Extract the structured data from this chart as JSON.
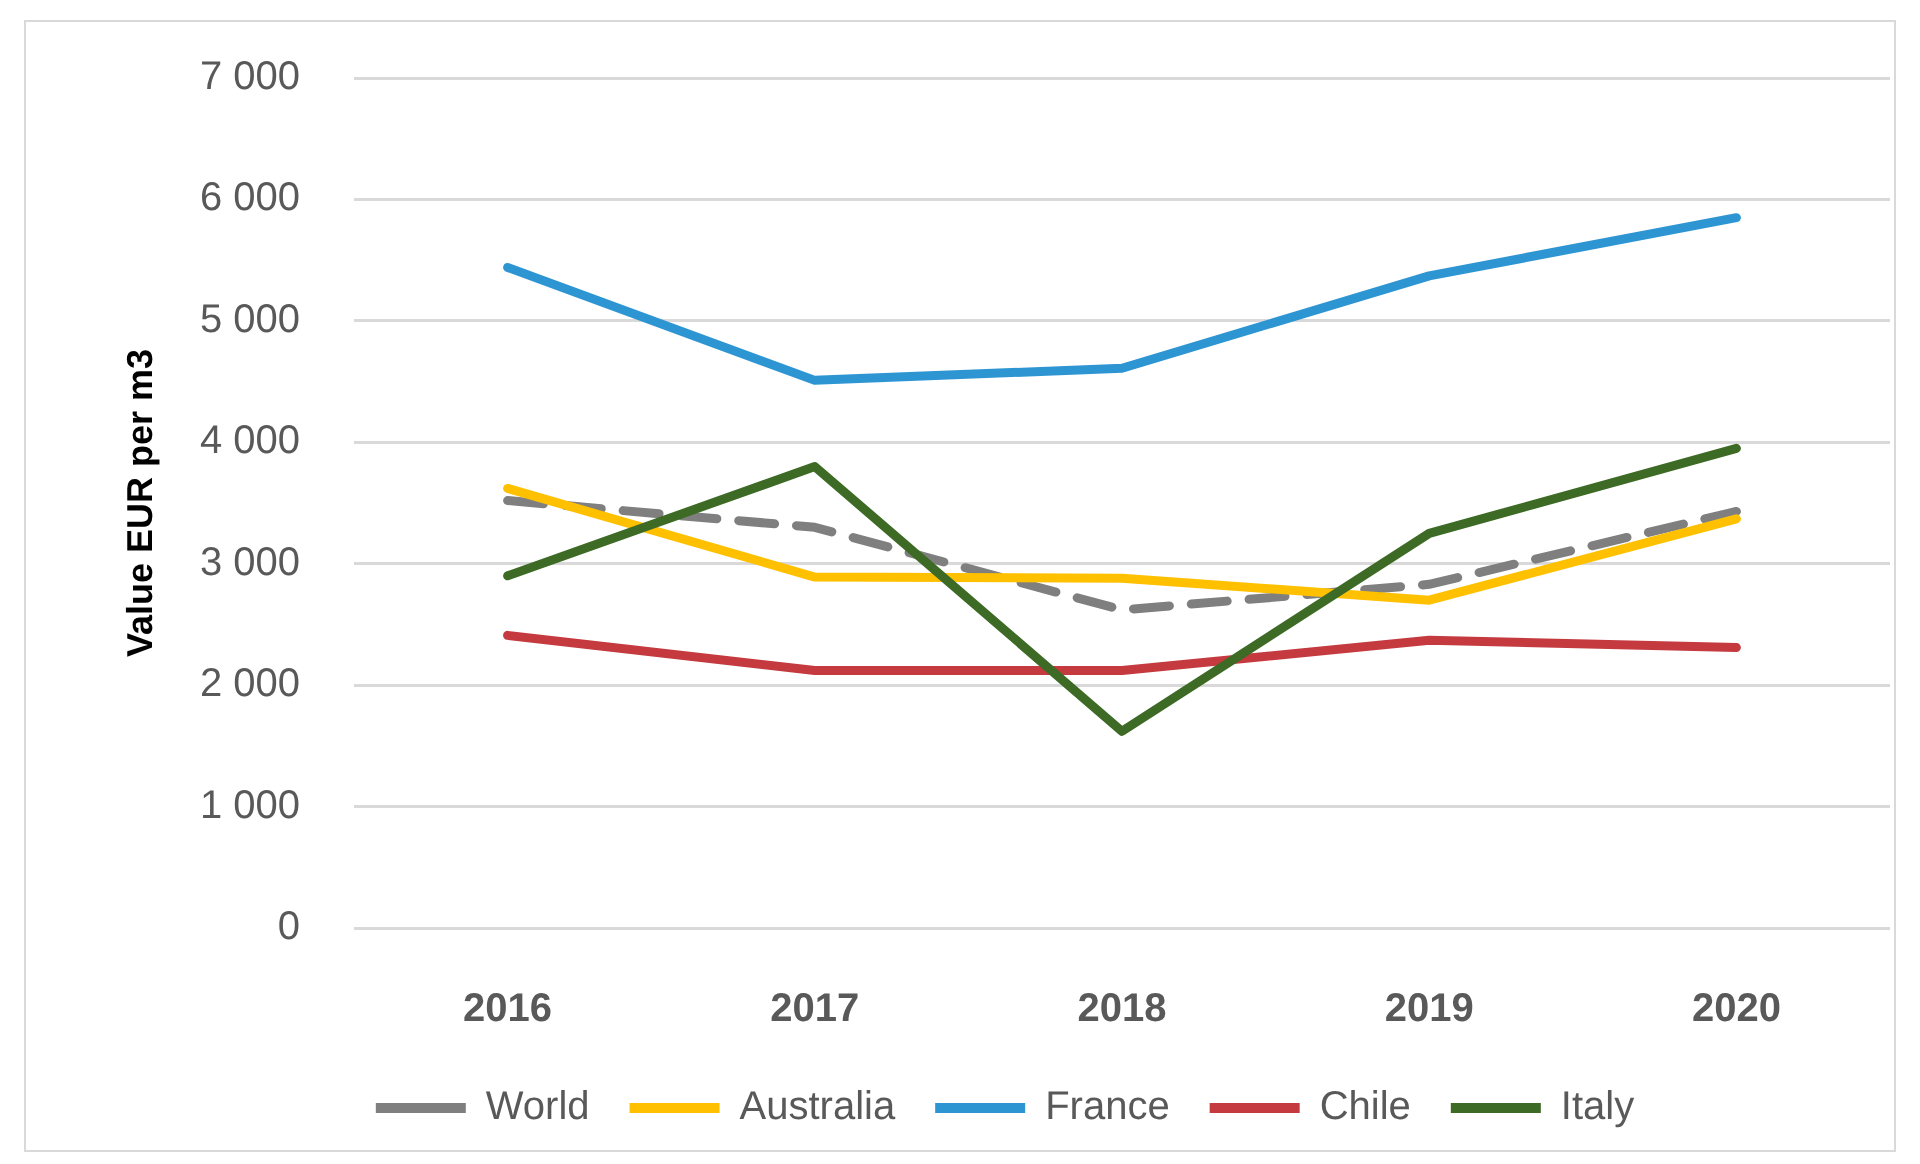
{
  "chart_data": {
    "type": "line",
    "ylabel": "Value EUR per m3",
    "categories": [
      "2016",
      "2017",
      "2018",
      "2019",
      "2020"
    ],
    "series": [
      {
        "name": "World",
        "color": "#7f7f7f",
        "line_style": "dashed",
        "values": [
          3520,
          3300,
          2620,
          2830,
          3430
        ]
      },
      {
        "name": "Australia",
        "color": "#ffc000",
        "values": [
          3620,
          2890,
          2880,
          2700,
          3370
        ]
      },
      {
        "name": "France",
        "color": "#2e95d3",
        "values": [
          5440,
          4510,
          4610,
          5370,
          5850
        ]
      },
      {
        "name": "Chile",
        "color": "#c43a3f",
        "values": [
          2410,
          2120,
          2120,
          2370,
          2310
        ]
      },
      {
        "name": "Italy",
        "color": "#3d6a25",
        "values": [
          2900,
          3800,
          1620,
          3250,
          3950
        ]
      }
    ],
    "ylim": [
      0,
      7000
    ],
    "yticks": [
      0,
      {
        "value": 1000,
        "label": "1 000"
      },
      {
        "value": 2000,
        "label": "2 000"
      },
      {
        "value": 3000,
        "label": "3 000"
      },
      {
        "value": 4000,
        "label": "4 000"
      },
      {
        "value": 5000,
        "label": "5 000"
      },
      {
        "value": 6000,
        "label": "6 000"
      },
      {
        "value": 7000,
        "label": "7 000"
      }
    ],
    "grid": "y",
    "legend": "bottom"
  }
}
